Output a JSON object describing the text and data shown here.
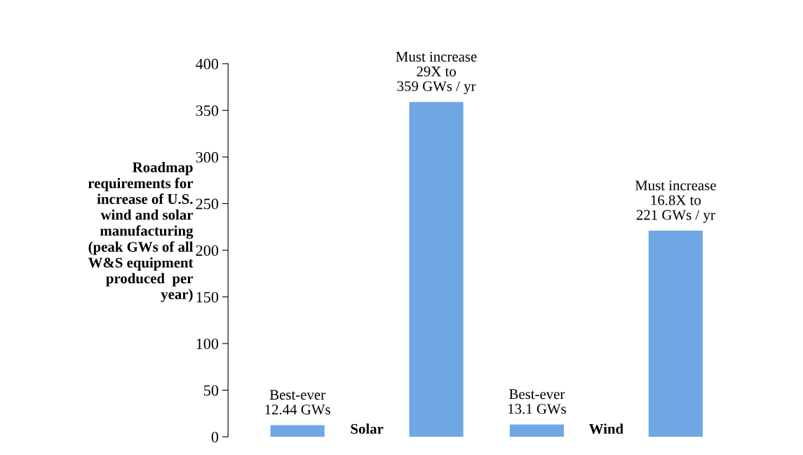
{
  "chart_data": {
    "type": "bar",
    "ylabel": "Roadmap\nrequirements for\nincrease of U.S.\nwind and solar\nmanufacturing\n(peak GWs of all\nW&S equipment\nproduced  per\nyear)",
    "categories": [
      "Solar",
      "Wind"
    ],
    "series": [
      {
        "color": "#6fa6e4",
        "values": [
          12.44,
          13.1
        ],
        "value_labels": [
          "Best-ever\n12.44 GWs",
          "Best-ever\n13.1 GWs"
        ]
      },
      {
        "color": "#6fa6e4",
        "values": [
          359,
          221
        ],
        "value_labels": [
          "Must increase\n29X to\n359 GWs / yr",
          "Must increase\n16.8X to\n221 GWs / yr"
        ]
      }
    ],
    "ylim": [
      0,
      400
    ],
    "yticks": [
      0,
      50,
      100,
      150,
      200,
      250,
      300,
      350,
      400
    ],
    "grid": false
  }
}
